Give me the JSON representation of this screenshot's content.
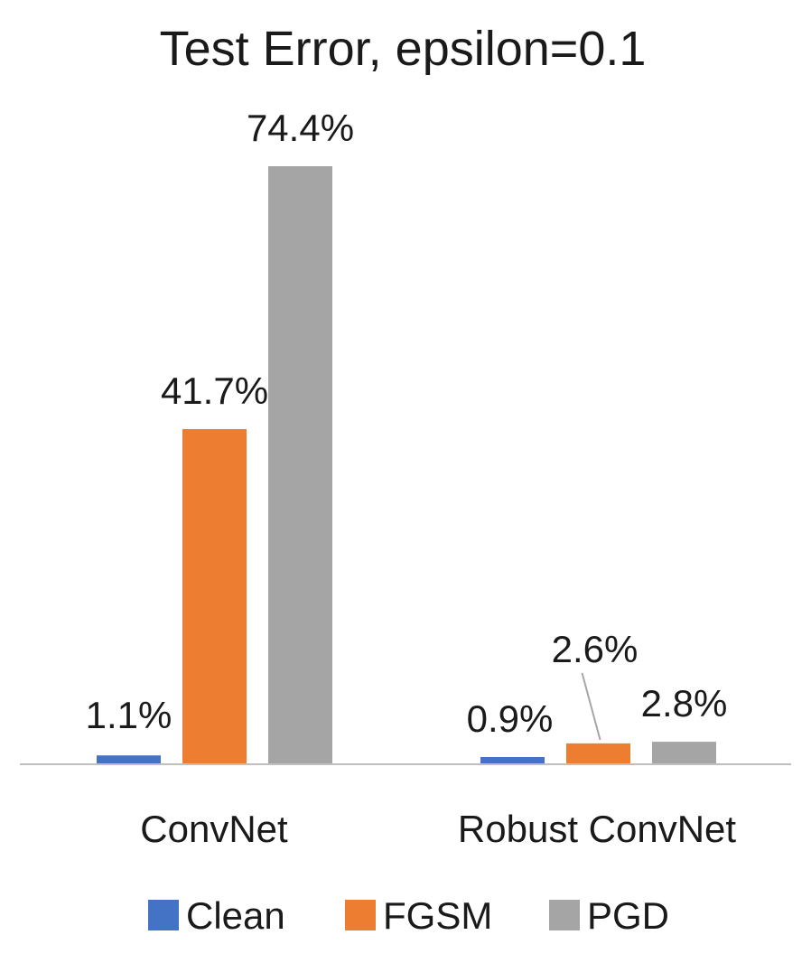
{
  "chart_data": {
    "type": "bar",
    "title": "Test Error, epsilon=0.1",
    "xlabel": "",
    "ylabel": "",
    "categories": [
      "ConvNet",
      "Robust ConvNet"
    ],
    "series": [
      {
        "name": "Clean",
        "values": [
          1.1,
          0.9
        ],
        "labels": [
          "1.1%",
          "0.9%"
        ],
        "color": "#4472C4"
      },
      {
        "name": "FGSM",
        "values": [
          41.7,
          2.6
        ],
        "labels": [
          "41.7%",
          "2.6%"
        ],
        "color": "#ED7D31"
      },
      {
        "name": "PGD",
        "values": [
          74.4,
          2.8
        ],
        "labels": [
          "74.4%",
          "2.8%"
        ],
        "color": "#A5A5A5"
      }
    ],
    "ylim": [
      0,
      74.4
    ],
    "y_axis_shown": false,
    "grid": false,
    "legend_position": "bottom"
  }
}
